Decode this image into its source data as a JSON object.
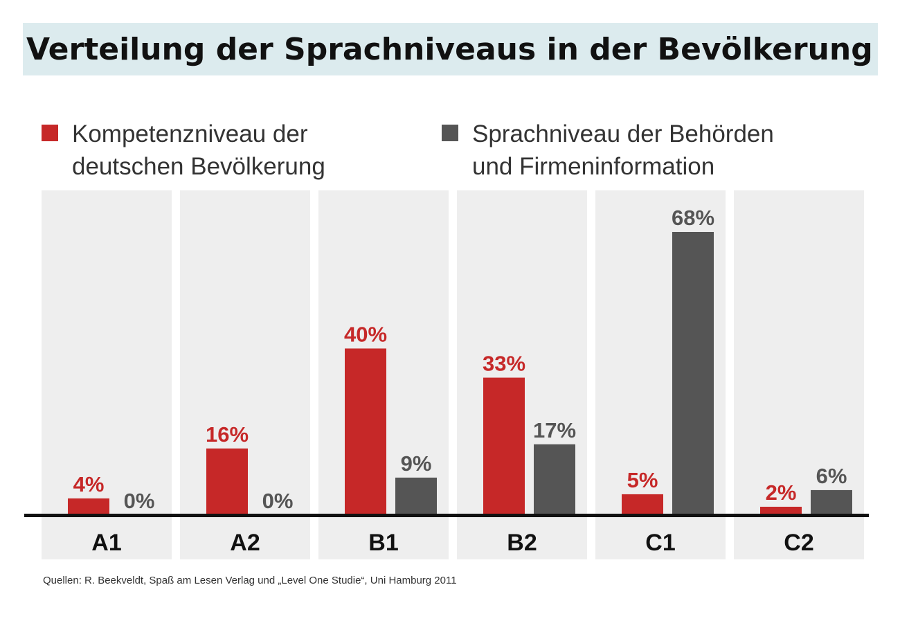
{
  "title": "Verteilung der Sprachniveaus in der Bevölkerung",
  "legend": [
    {
      "line1": "Kompetenzniveau der",
      "line2": "deutschen Bevölkerung",
      "color": "#c62828"
    },
    {
      "line1": "Sprachniveau der Behörden",
      "line2": "und Firmeninformation",
      "color": "#555555"
    }
  ],
  "source": "Quellen: R. Beekveldt, Spaß am Lesen Verlag und „Level One Studie“, Uni Hamburg 2011",
  "colors": {
    "red": "#c62828",
    "gray": "#555555",
    "panel": "#eeeeee",
    "axis": "#111111"
  },
  "chart_data": {
    "type": "bar",
    "categories": [
      "A1",
      "A2",
      "B1",
      "B2",
      "C1",
      "C2"
    ],
    "series": [
      {
        "values": [
          4,
          16,
          40,
          33,
          5,
          2
        ],
        "labels": [
          "4%",
          "16%",
          "40%",
          "33%",
          "5%",
          "2%"
        ],
        "color": "#c62828"
      },
      {
        "values": [
          0,
          0,
          9,
          17,
          68,
          6
        ],
        "labels": [
          "0%",
          "0%",
          "9%",
          "17%",
          "68%",
          "6%"
        ],
        "color": "#555555"
      }
    ],
    "ylim": [
      0,
      75
    ],
    "legend_position": "top",
    "grid": false
  }
}
